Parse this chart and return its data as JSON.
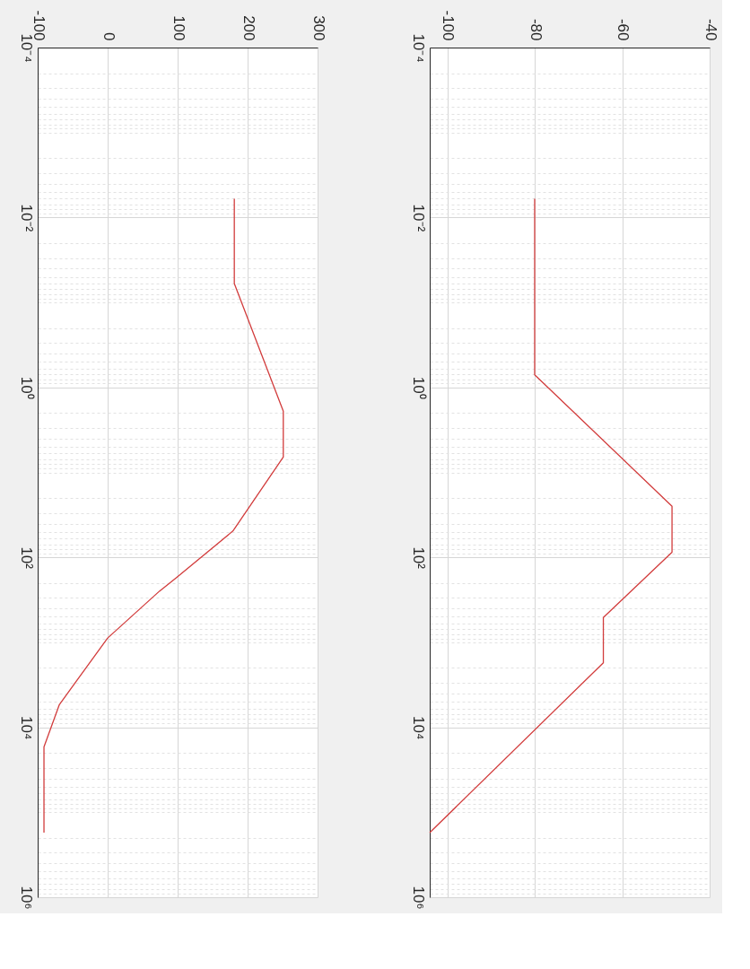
{
  "chart_data": [
    {
      "type": "line",
      "log": "y",
      "grid": true,
      "legend": false,
      "marker": "none",
      "line_style": "solid",
      "xlim": [
        -100,
        300
      ],
      "xticks": [
        -100,
        0,
        100,
        200,
        300
      ],
      "ylim": [
        1000000,
        0.0001
      ],
      "yticks": [
        {
          "value": 0.0001,
          "label": "10⁻⁴"
        },
        {
          "value": 0.0002,
          "label": null
        },
        {
          "value": 0.0003,
          "label": null
        },
        {
          "value": 0.0004,
          "label": null
        },
        {
          "value": 0.0005,
          "label": null
        },
        {
          "value": 0.0006,
          "label": null
        },
        {
          "value": 0.0007,
          "label": null
        },
        {
          "value": 0.0008,
          "label": null
        },
        {
          "value": 0.0009,
          "label": null
        },
        {
          "value": 0.001,
          "label": null
        },
        {
          "value": 0.002,
          "label": null
        },
        {
          "value": 0.003,
          "label": null
        },
        {
          "value": 0.004,
          "label": null
        },
        {
          "value": 0.005,
          "label": null
        },
        {
          "value": 0.006,
          "label": null
        },
        {
          "value": 0.007,
          "label": null
        },
        {
          "value": 0.008,
          "label": null
        },
        {
          "value": 0.009,
          "label": null
        },
        {
          "value": 0.01,
          "label": "10⁻²"
        },
        {
          "value": 0.02,
          "label": null
        },
        {
          "value": 0.03,
          "label": null
        },
        {
          "value": 0.04,
          "label": null
        },
        {
          "value": 0.05,
          "label": null
        },
        {
          "value": 0.06,
          "label": null
        },
        {
          "value": 0.07,
          "label": null
        },
        {
          "value": 0.08,
          "label": null
        },
        {
          "value": 0.09,
          "label": null
        },
        {
          "value": 0.1,
          "label": null
        },
        {
          "value": 0.2,
          "label": null
        },
        {
          "value": 0.3,
          "label": null
        },
        {
          "value": 0.4,
          "label": null
        },
        {
          "value": 0.5,
          "label": null
        },
        {
          "value": 0.6,
          "label": null
        },
        {
          "value": 0.7,
          "label": null
        },
        {
          "value": 0.8,
          "label": null
        },
        {
          "value": 0.9,
          "label": null
        },
        {
          "value": 1,
          "label": "10⁰"
        },
        {
          "value": 2,
          "label": null
        },
        {
          "value": 3,
          "label": null
        },
        {
          "value": 4,
          "label": null
        },
        {
          "value": 5,
          "label": null
        },
        {
          "value": 6,
          "label": null
        },
        {
          "value": 7,
          "label": null
        },
        {
          "value": 8,
          "label": null
        },
        {
          "value": 9,
          "label": null
        },
        {
          "value": 10,
          "label": null
        },
        {
          "value": 20,
          "label": null
        },
        {
          "value": 30,
          "label": null
        },
        {
          "value": 40,
          "label": null
        },
        {
          "value": 50,
          "label": null
        },
        {
          "value": 60,
          "label": null
        },
        {
          "value": 70,
          "label": null
        },
        {
          "value": 80,
          "label": null
        },
        {
          "value": 90,
          "label": null
        },
        {
          "value": 100,
          "label": "10²"
        },
        {
          "value": 200,
          "label": null
        },
        {
          "value": 300,
          "label": null
        },
        {
          "value": 400,
          "label": null
        },
        {
          "value": 500,
          "label": null
        },
        {
          "value": 600,
          "label": null
        },
        {
          "value": 700,
          "label": null
        },
        {
          "value": 800,
          "label": null
        },
        {
          "value": 900,
          "label": null
        },
        {
          "value": 1000,
          "label": null
        },
        {
          "value": 2000,
          "label": null
        },
        {
          "value": 3000,
          "label": null
        },
        {
          "value": 4000,
          "label": null
        },
        {
          "value": 5000,
          "label": null
        },
        {
          "value": 6000,
          "label": null
        },
        {
          "value": 7000,
          "label": null
        },
        {
          "value": 8000,
          "label": null
        },
        {
          "value": 9000,
          "label": null
        },
        {
          "value": 10000,
          "label": "10⁴"
        },
        {
          "value": 20000,
          "label": null
        },
        {
          "value": 30000,
          "label": null
        },
        {
          "value": 40000,
          "label": null
        },
        {
          "value": 50000,
          "label": null
        },
        {
          "value": 60000,
          "label": null
        },
        {
          "value": 70000,
          "label": null
        },
        {
          "value": 80000,
          "label": null
        },
        {
          "value": 90000,
          "label": null
        },
        {
          "value": 100000,
          "label": null
        },
        {
          "value": 200000,
          "label": null
        },
        {
          "value": 300000,
          "label": null
        },
        {
          "value": 400000,
          "label": null
        },
        {
          "value": 500000,
          "label": null
        },
        {
          "value": 600000,
          "label": null
        },
        {
          "value": 700000,
          "label": null
        },
        {
          "value": 800000,
          "label": null
        },
        {
          "value": 900000,
          "label": null
        },
        {
          "value": 1000000,
          "label": "10⁶"
        }
      ],
      "series": [
        {
          "color": "#d23c3c",
          "x": [
            181,
            181,
            251,
            251,
            179,
            98,
            74,
            0,
            -69,
            -91,
            -91
          ],
          "values": [
            0.006,
            0.06,
            1.9,
            6.6,
            49,
            174,
            250,
            890,
            5400,
            17000,
            174000
          ]
        }
      ]
    },
    {
      "type": "line",
      "log": "y",
      "grid": true,
      "legend": false,
      "marker": "none",
      "line_style": "solid",
      "xlim": [
        -104,
        -40
      ],
      "xticks": [
        -100,
        -80,
        -60,
        -40
      ],
      "ylim": [
        1000000,
        0.0001
      ],
      "yticks": [
        {
          "value": 0.0001,
          "label": "10⁻⁴"
        },
        {
          "value": 0.0002,
          "label": null
        },
        {
          "value": 0.0003,
          "label": null
        },
        {
          "value": 0.0004,
          "label": null
        },
        {
          "value": 0.0005,
          "label": null
        },
        {
          "value": 0.0006,
          "label": null
        },
        {
          "value": 0.0007,
          "label": null
        },
        {
          "value": 0.0008,
          "label": null
        },
        {
          "value": 0.0009,
          "label": null
        },
        {
          "value": 0.001,
          "label": null
        },
        {
          "value": 0.002,
          "label": null
        },
        {
          "value": 0.003,
          "label": null
        },
        {
          "value": 0.004,
          "label": null
        },
        {
          "value": 0.005,
          "label": null
        },
        {
          "value": 0.006,
          "label": null
        },
        {
          "value": 0.007,
          "label": null
        },
        {
          "value": 0.008,
          "label": null
        },
        {
          "value": 0.009,
          "label": null
        },
        {
          "value": 0.01,
          "label": "10⁻²"
        },
        {
          "value": 0.02,
          "label": null
        },
        {
          "value": 0.03,
          "label": null
        },
        {
          "value": 0.04,
          "label": null
        },
        {
          "value": 0.05,
          "label": null
        },
        {
          "value": 0.06,
          "label": null
        },
        {
          "value": 0.07,
          "label": null
        },
        {
          "value": 0.08,
          "label": null
        },
        {
          "value": 0.09,
          "label": null
        },
        {
          "value": 0.1,
          "label": null
        },
        {
          "value": 0.2,
          "label": null
        },
        {
          "value": 0.3,
          "label": null
        },
        {
          "value": 0.4,
          "label": null
        },
        {
          "value": 0.5,
          "label": null
        },
        {
          "value": 0.6,
          "label": null
        },
        {
          "value": 0.7,
          "label": null
        },
        {
          "value": 0.8,
          "label": null
        },
        {
          "value": 0.9,
          "label": null
        },
        {
          "value": 1,
          "label": "10⁰"
        },
        {
          "value": 2,
          "label": null
        },
        {
          "value": 3,
          "label": null
        },
        {
          "value": 4,
          "label": null
        },
        {
          "value": 5,
          "label": null
        },
        {
          "value": 6,
          "label": null
        },
        {
          "value": 7,
          "label": null
        },
        {
          "value": 8,
          "label": null
        },
        {
          "value": 9,
          "label": null
        },
        {
          "value": 10,
          "label": null
        },
        {
          "value": 20,
          "label": null
        },
        {
          "value": 30,
          "label": null
        },
        {
          "value": 40,
          "label": null
        },
        {
          "value": 50,
          "label": null
        },
        {
          "value": 60,
          "label": null
        },
        {
          "value": 70,
          "label": null
        },
        {
          "value": 80,
          "label": null
        },
        {
          "value": 90,
          "label": null
        },
        {
          "value": 100,
          "label": "10²"
        },
        {
          "value": 200,
          "label": null
        },
        {
          "value": 300,
          "label": null
        },
        {
          "value": 400,
          "label": null
        },
        {
          "value": 500,
          "label": null
        },
        {
          "value": 600,
          "label": null
        },
        {
          "value": 700,
          "label": null
        },
        {
          "value": 800,
          "label": null
        },
        {
          "value": 900,
          "label": null
        },
        {
          "value": 1000,
          "label": null
        },
        {
          "value": 2000,
          "label": null
        },
        {
          "value": 3000,
          "label": null
        },
        {
          "value": 4000,
          "label": null
        },
        {
          "value": 5000,
          "label": null
        },
        {
          "value": 6000,
          "label": null
        },
        {
          "value": 7000,
          "label": null
        },
        {
          "value": 8000,
          "label": null
        },
        {
          "value": 9000,
          "label": null
        },
        {
          "value": 10000,
          "label": "10⁴"
        },
        {
          "value": 20000,
          "label": null
        },
        {
          "value": 30000,
          "label": null
        },
        {
          "value": 40000,
          "label": null
        },
        {
          "value": 50000,
          "label": null
        },
        {
          "value": 60000,
          "label": null
        },
        {
          "value": 70000,
          "label": null
        },
        {
          "value": 80000,
          "label": null
        },
        {
          "value": 90000,
          "label": null
        },
        {
          "value": 100000,
          "label": null
        },
        {
          "value": 200000,
          "label": null
        },
        {
          "value": 300000,
          "label": null
        },
        {
          "value": 400000,
          "label": null
        },
        {
          "value": 500000,
          "label": null
        },
        {
          "value": 600000,
          "label": null
        },
        {
          "value": 700000,
          "label": null
        },
        {
          "value": 800000,
          "label": null
        },
        {
          "value": 900000,
          "label": null
        },
        {
          "value": 1000000,
          "label": "10⁶"
        }
      ],
      "series": [
        {
          "color": "#d23c3c",
          "x": [
            -80,
            -80,
            -48.6,
            -48.6,
            -64.3,
            -64.3,
            -104
          ],
          "values": [
            0.006,
            0.71,
            25,
            87,
            510,
            1740,
            174000
          ]
        }
      ]
    }
  ]
}
